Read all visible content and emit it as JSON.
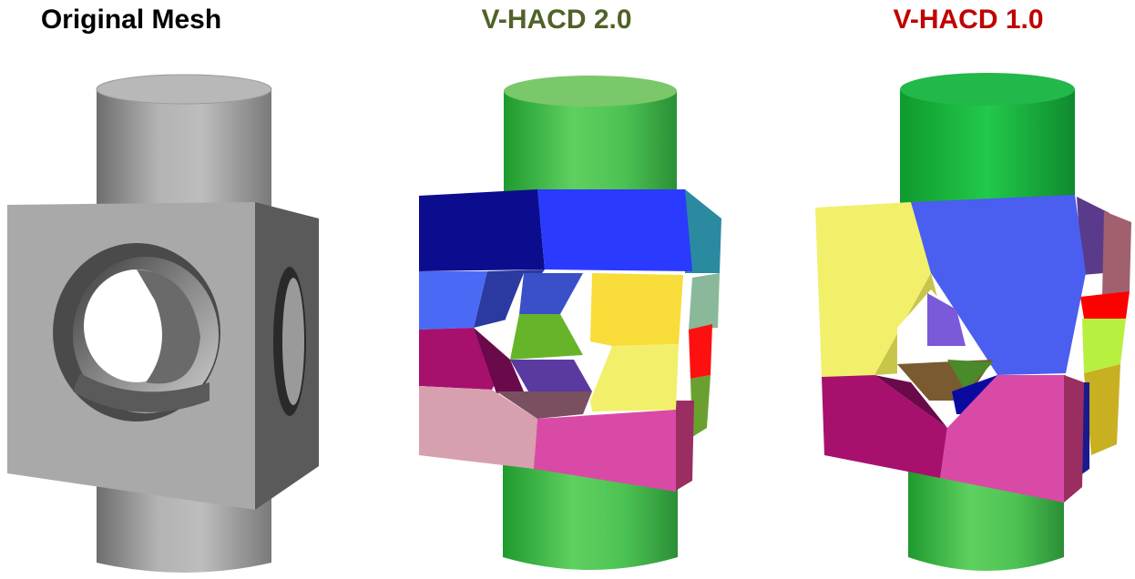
{
  "panels": [
    {
      "id": "original",
      "title": "Original Mesh",
      "title_color": "#000000",
      "mesh": "cube-with-cylinder"
    },
    {
      "id": "vhacd2",
      "title": "V-HACD 2.0",
      "title_color": "#4f6228",
      "mesh": "convex-decomposition"
    },
    {
      "id": "vhacd1",
      "title": "V-HACD 1.0",
      "title_color": "#c00000",
      "mesh": "convex-decomposition"
    }
  ],
  "colors": {
    "mesh_gray": "#a6a6a6",
    "cylinder_green": "#3fbf4a",
    "blue": "#2a3bff",
    "navy": "#0a0a8a",
    "magenta": "#d94aa6",
    "purple_red": "#a8106e",
    "pink": "#d6a0ae",
    "yellow": "#f2f06a",
    "gold": "#f8dc3a",
    "red": "#ff0000"
  }
}
